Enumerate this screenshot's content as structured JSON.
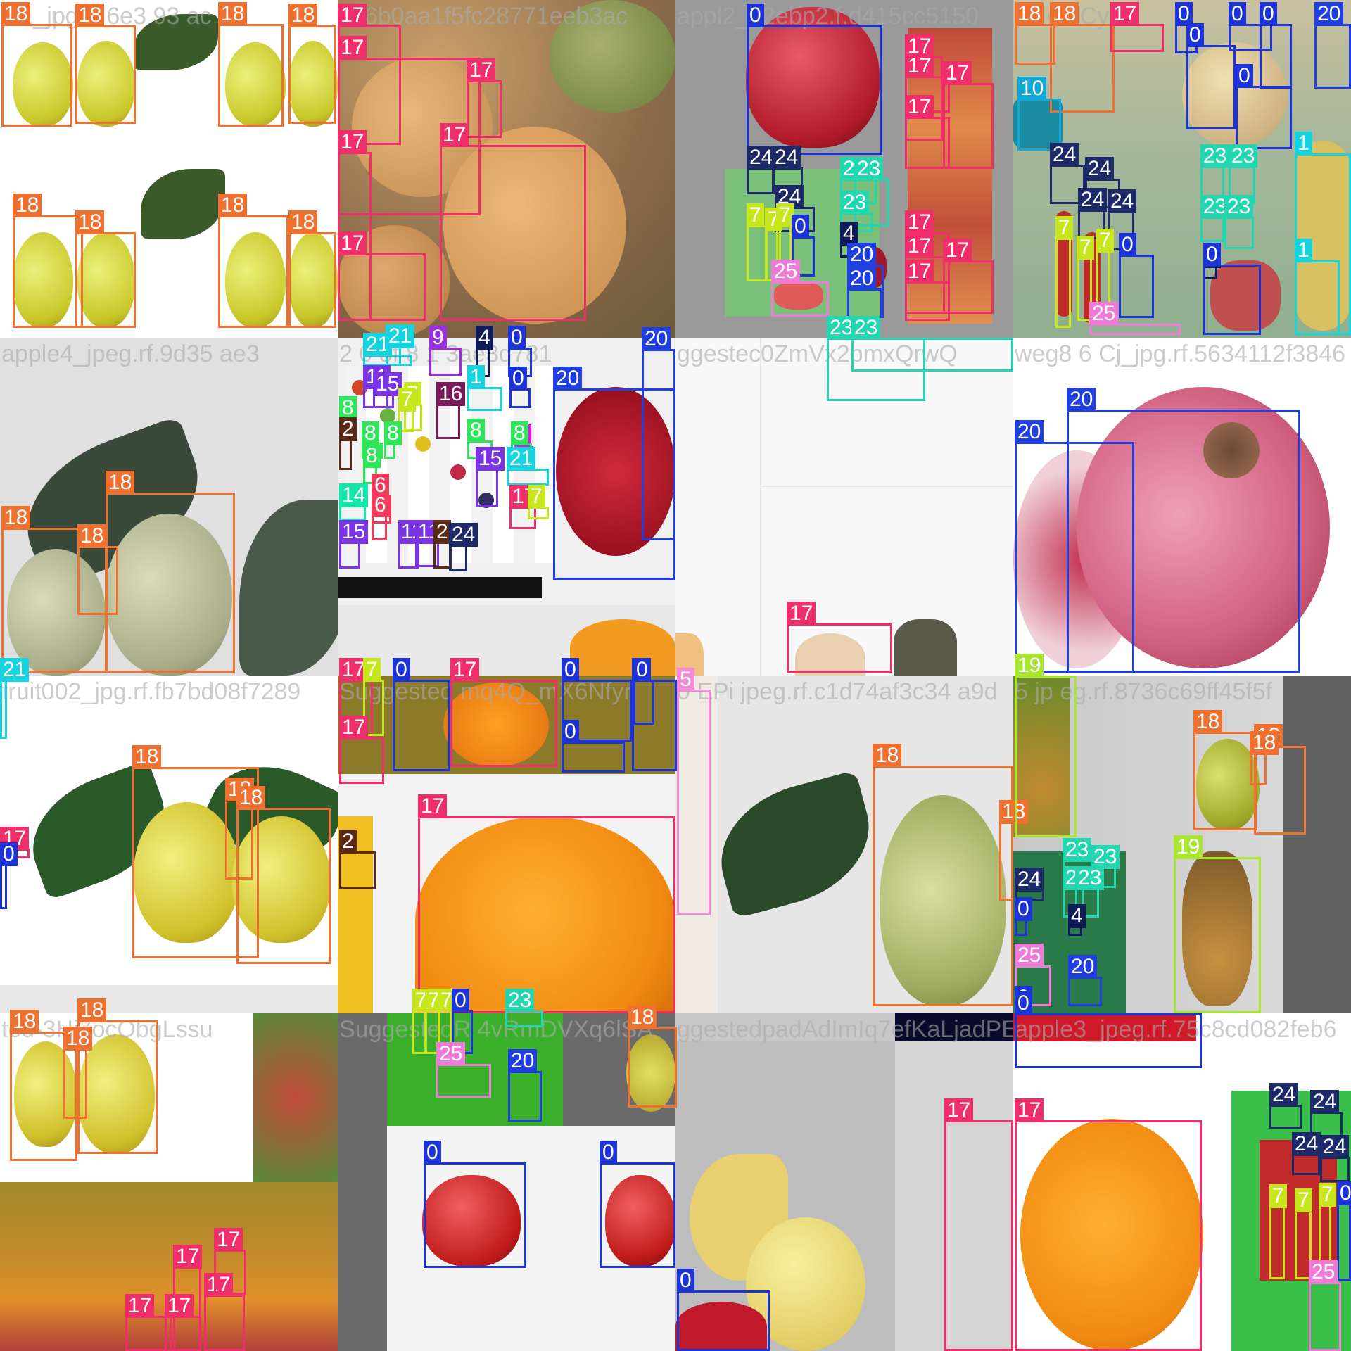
{
  "mosaic": {
    "captions": [
      "i01_jpg.rf.6e3 93 ac",
      "2c6b0aa1f5fc28771eeb3ac",
      "appl2_52ebp2.f.d415cc5150",
      "4c  on Cy",
      "apple4_jpeg.rf.9d35  ae3",
      "2 0 3f 8 1 3ae3d781",
      "ggestec0ZmVx2bmxQrwQ",
      "weg8 6 Cj_jpg.rf.5634112f3846",
      "fruit002_jpg.rf.fb7bd08f7289",
      "Suggested mq4Q_mX6Nfyn",
      "0 EPi jpeg.rf.c1d74af3c34 a9d",
      "5 jp eg.rf.8736c69ff45f5f",
      "ted-3Hj7ocObgLssu",
      "SuggestedR 4vRmDVXq6lSA",
      "ggestedpadAdImIq7efKaLjadPE3",
      "apple3_jpeg.rf.75c8cd082feb6"
    ],
    "class_colors": {
      "0": "#1b33d9",
      "1": "#14d4e0",
      "2": "#5b2a16",
      "4": "#0e1a5a",
      "5": "#f48bd6",
      "6": "#f23b5a",
      "7": "#c7e61b",
      "8": "#2ee65a",
      "9": "#9b2fe0",
      "10": "#12a8d6",
      "11": "#7a34e6",
      "14": "#12e6a8",
      "15": "#7a34e6",
      "16": "#7a1a5a",
      "17": "#f02f6a",
      "18": "#f0702f",
      "19": "#a8e62f",
      "20": "#1f3fe0",
      "21": "#14d4e0",
      "23": "#22d6b0",
      "24": "#1c2a6a",
      "25": "#f07ad8"
    },
    "boxes": [
      [
        "18",
        2,
        34,
        103,
        180
      ],
      [
        "18",
        107,
        36,
        193,
        176
      ],
      [
        "18",
        310,
        34,
        403,
        180
      ],
      [
        "18",
        410,
        36,
        478,
        176
      ],
      [
        "18",
        18,
        306,
        118,
        466
      ],
      [
        "18",
        107,
        330,
        193,
        466
      ],
      [
        "18",
        310,
        306,
        410,
        466
      ],
      [
        "18",
        410,
        330,
        478,
        466
      ],
      [
        "17",
        480,
        36,
        570,
        206
      ],
      [
        "17",
        480,
        82,
        683,
        306
      ],
      [
        "17",
        663,
        114,
        713,
        196
      ],
      [
        "17",
        625,
        206,
        833,
        456
      ],
      [
        "17",
        480,
        216,
        528,
        456
      ],
      [
        "17",
        480,
        360,
        606,
        456
      ],
      [
        "0",
        1061,
        36,
        1254,
        220
      ],
      [
        "24",
        1061,
        238,
        1101,
        276
      ],
      [
        "24",
        1097,
        238,
        1141,
        276
      ],
      [
        "24",
        1101,
        294,
        1158,
        330
      ],
      [
        "7",
        1061,
        320,
        1091,
        400
      ],
      [
        "7",
        1087,
        326,
        1110,
        400
      ],
      [
        "7",
        1103,
        320,
        1125,
        400
      ],
      [
        "0",
        1125,
        336,
        1158,
        393
      ],
      [
        "25",
        1096,
        400,
        1178,
        450
      ],
      [
        "23",
        1194,
        254,
        1246,
        290
      ],
      [
        "23",
        1214,
        254,
        1264,
        322
      ],
      [
        "23",
        1194,
        302,
        1240,
        330
      ],
      [
        "4",
        1194,
        346,
        1214,
        366
      ],
      [
        "20",
        1204,
        376,
        1256,
        452
      ],
      [
        "20",
        1204,
        410,
        1254,
        452
      ],
      [
        "17",
        1286,
        80,
        1340,
        200
      ],
      [
        "17",
        1286,
        108,
        1350,
        160
      ],
      [
        "17",
        1340,
        118,
        1412,
        240
      ],
      [
        "17",
        1286,
        166,
        1350,
        240
      ],
      [
        "17",
        1286,
        330,
        1350,
        446
      ],
      [
        "17",
        1286,
        364,
        1350,
        446
      ],
      [
        "17",
        1340,
        370,
        1412,
        446
      ],
      [
        "17",
        1286,
        400,
        1350,
        456
      ],
      [
        "18",
        1442,
        34,
        1500,
        92
      ],
      [
        "18",
        1492,
        34,
        1584,
        160
      ],
      [
        "17",
        1578,
        34,
        1654,
        74
      ],
      [
        "0",
        1670,
        34,
        1702,
        76
      ],
      [
        "0",
        1686,
        64,
        1756,
        184
      ],
      [
        "0",
        1746,
        34,
        1808,
        72
      ],
      [
        "0",
        1790,
        34,
        1836,
        126
      ],
      [
        "0",
        1756,
        122,
        1836,
        212
      ],
      [
        "20",
        1868,
        34,
        1920,
        126
      ],
      [
        "10",
        1446,
        140,
        1508,
        214
      ],
      [
        "24",
        1492,
        234,
        1542,
        290
      ],
      [
        "24",
        1542,
        254,
        1592,
        296
      ],
      [
        "24",
        1532,
        298,
        1570,
        340
      ],
      [
        "24",
        1574,
        300,
        1612,
        356
      ],
      [
        "7",
        1500,
        338,
        1522,
        466
      ],
      [
        "7",
        1530,
        366,
        1552,
        456
      ],
      [
        "7",
        1558,
        356,
        1578,
        456
      ],
      [
        "0",
        1590,
        362,
        1640,
        452
      ],
      [
        "25",
        1548,
        460,
        1678,
        476
      ],
      [
        "4",
        1710,
        378,
        1730,
        396
      ],
      [
        "0",
        1710,
        376,
        1792,
        476
      ],
      [
        "23",
        1706,
        236,
        1740,
        290
      ],
      [
        "23",
        1746,
        236,
        1784,
        290
      ],
      [
        "23",
        1706,
        308,
        1740,
        344
      ],
      [
        "23",
        1740,
        308,
        1782,
        354
      ],
      [
        "1",
        1840,
        218,
        1920,
        476
      ],
      [
        "1",
        1840,
        370,
        1904,
        476
      ],
      [
        "18",
        2,
        750,
        152,
        956
      ],
      [
        "18",
        150,
        700,
        334,
        956
      ],
      [
        "18",
        110,
        776,
        168,
        874
      ],
      [
        "21",
        516,
        504,
        586,
        520
      ],
      [
        "21",
        548,
        492,
        570,
        520
      ],
      [
        "9",
        610,
        494,
        656,
        534
      ],
      [
        "4",
        676,
        494,
        696,
        536
      ],
      [
        "0",
        722,
        494,
        756,
        536
      ],
      [
        "11",
        516,
        550,
        552,
        580
      ],
      [
        "15",
        530,
        560,
        560,
        580
      ],
      [
        "1",
        664,
        550,
        714,
        584
      ],
      [
        "7",
        574,
        574,
        600,
        612
      ],
      [
        "7",
        566,
        582,
        588,
        614
      ],
      [
        "16",
        620,
        574,
        654,
        624
      ],
      [
        "8",
        482,
        594,
        504,
        600
      ],
      [
        "8",
        514,
        630,
        544,
        652
      ],
      [
        "8",
        546,
        630,
        562,
        652
      ],
      [
        "8",
        516,
        662,
        536,
        688
      ],
      [
        "8",
        664,
        626,
        700,
        652
      ],
      [
        "3",
        730,
        634,
        758,
        650
      ],
      [
        "8",
        726,
        630,
        756,
        652
      ],
      [
        "2",
        482,
        624,
        500,
        668
      ],
      [
        "21",
        720,
        666,
        780,
        690
      ],
      [
        "15",
        676,
        666,
        708,
        720
      ],
      [
        "14",
        482,
        718,
        520,
        740
      ],
      [
        "6",
        528,
        704,
        556,
        744
      ],
      [
        "6",
        528,
        732,
        550,
        768
      ],
      [
        "17",
        724,
        720,
        762,
        752
      ],
      [
        "7",
        750,
        720,
        780,
        738
      ],
      [
        "15",
        482,
        770,
        512,
        808
      ],
      [
        "11",
        566,
        770,
        596,
        808
      ],
      [
        "11",
        590,
        770,
        624,
        806
      ],
      [
        "2",
        616,
        770,
        642,
        808
      ],
      [
        "24",
        638,
        774,
        664,
        812
      ],
      [
        "0",
        724,
        552,
        754,
        580
      ],
      [
        "20",
        786,
        552,
        960,
        824
      ],
      [
        "20",
        912,
        496,
        960,
        768
      ],
      [
        "17",
        1118,
        886,
        1268,
        956
      ],
      [
        "23",
        1175,
        480,
        1315,
        570
      ],
      [
        "23",
        1210,
        480,
        1440,
        528
      ],
      [
        "20",
        1442,
        628,
        1612,
        956
      ],
      [
        "20",
        1516,
        582,
        1848,
        956
      ],
      [
        "21",
        0,
        966,
        10,
        1050
      ],
      [
        "17",
        0,
        1206,
        42,
        1220
      ],
      [
        "0",
        0,
        1228,
        10,
        1292
      ],
      [
        "18",
        188,
        1090,
        368,
        1362
      ],
      [
        "18",
        320,
        1136,
        360,
        1250
      ],
      [
        "18",
        336,
        1148,
        470,
        1370
      ],
      [
        "17",
        482,
        966,
        530,
        1050
      ],
      [
        "7",
        516,
        966,
        546,
        1046
      ],
      [
        "17",
        482,
        1048,
        546,
        1114
      ],
      [
        "0",
        558,
        966,
        640,
        1096
      ],
      [
        "17",
        640,
        966,
        792,
        1090
      ],
      [
        "0",
        798,
        966,
        898,
        1054
      ],
      [
        "0",
        798,
        1054,
        888,
        1098
      ],
      [
        "0",
        898,
        966,
        962,
        1096
      ],
      [
        "0",
        900,
        966,
        930,
        1030
      ],
      [
        "17",
        594,
        1160,
        960,
        1440
      ],
      [
        "2",
        482,
        1210,
        534,
        1264
      ],
      [
        "5",
        962,
        980,
        1010,
        1300
      ],
      [
        "18",
        1240,
        1088,
        1440,
        1430
      ],
      [
        "18",
        1420,
        1168,
        1440,
        1280
      ],
      [
        "19",
        1442,
        960,
        1530,
        1190
      ],
      [
        "18",
        1696,
        1040,
        1786,
        1180
      ],
      [
        "18",
        1782,
        1060,
        1856,
        1186
      ],
      [
        "18",
        1776,
        1070,
        1800,
        1116
      ],
      [
        "19",
        1668,
        1218,
        1792,
        1440
      ],
      [
        "24",
        1442,
        1264,
        1484,
        1280
      ],
      [
        "0",
        1442,
        1306,
        1460,
        1330
      ],
      [
        "23",
        1510,
        1222,
        1554,
        1250
      ],
      [
        "23",
        1550,
        1232,
        1586,
        1262
      ],
      [
        "23",
        1510,
        1262,
        1540,
        1304
      ],
      [
        "23",
        1528,
        1262,
        1562,
        1304
      ],
      [
        "4",
        1518,
        1316,
        1538,
        1330
      ],
      [
        "25",
        1442,
        1372,
        1494,
        1430
      ],
      [
        "20",
        1518,
        1388,
        1566,
        1430
      ],
      [
        "0",
        1442,
        1432,
        1460,
        1440
      ],
      [
        "18",
        14,
        1466,
        110,
        1650
      ],
      [
        "18",
        110,
        1450,
        224,
        1640
      ],
      [
        "18",
        90,
        1490,
        124,
        1590
      ],
      [
        "17",
        178,
        1870,
        244,
        1920
      ],
      [
        "17",
        246,
        1800,
        286,
        1920
      ],
      [
        "17",
        290,
        1840,
        348,
        1920
      ],
      [
        "17",
        234,
        1870,
        286,
        1920
      ],
      [
        "17",
        304,
        1776,
        350,
        1840
      ],
      [
        "7",
        586,
        1436,
        606,
        1498
      ],
      [
        "7",
        604,
        1436,
        626,
        1498
      ],
      [
        "7",
        622,
        1436,
        642,
        1498
      ],
      [
        "0",
        642,
        1436,
        672,
        1498
      ],
      [
        "23",
        718,
        1436,
        772,
        1460
      ],
      [
        "25",
        620,
        1512,
        698,
        1560
      ],
      [
        "20",
        722,
        1522,
        770,
        1594
      ],
      [
        "0",
        602,
        1652,
        748,
        1802
      ],
      [
        "0",
        852,
        1652,
        960,
        1802
      ],
      [
        "18",
        892,
        1460,
        962,
        1574
      ],
      [
        "0",
        962,
        1834,
        1094,
        1920
      ],
      [
        "17",
        1342,
        1592,
        1440,
        1920
      ],
      [
        "17",
        1442,
        1592,
        1708,
        1920
      ],
      [
        "24",
        1804,
        1570,
        1850,
        1604
      ],
      [
        "24",
        1862,
        1580,
        1908,
        1626
      ],
      [
        "24",
        1836,
        1640,
        1876,
        1670
      ],
      [
        "24",
        1876,
        1644,
        1918,
        1680
      ],
      [
        "7",
        1804,
        1714,
        1826,
        1818
      ],
      [
        "7",
        1840,
        1720,
        1864,
        1818
      ],
      [
        "7",
        1874,
        1712,
        1892,
        1800
      ],
      [
        "0",
        1900,
        1710,
        1920,
        1820
      ],
      [
        "25",
        1860,
        1822,
        1906,
        1920
      ],
      [
        "0",
        1442,
        1440,
        1708,
        1518
      ]
    ]
  }
}
